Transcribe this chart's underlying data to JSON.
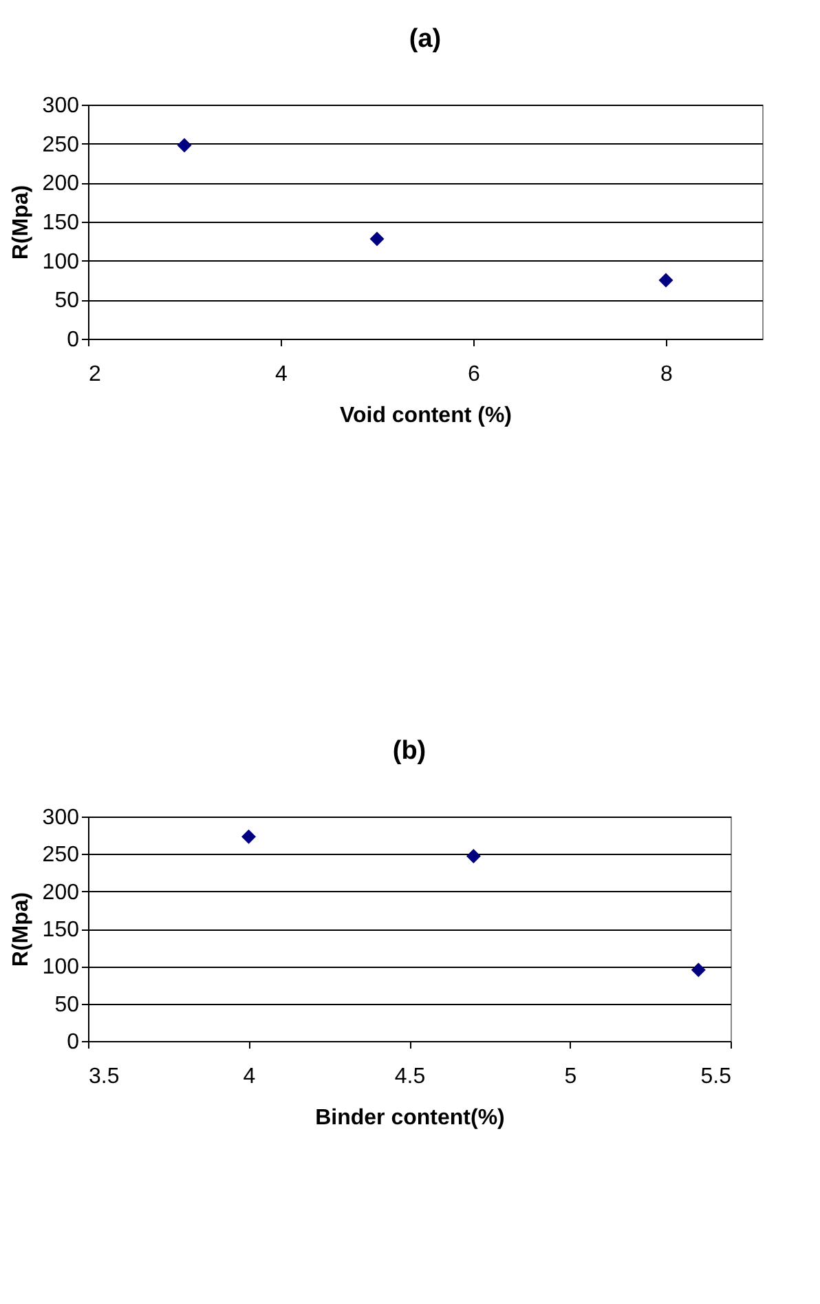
{
  "chart_data": [
    {
      "type": "scatter",
      "title": "(a)",
      "xlabel": "Void content (%)",
      "ylabel": "R(Mpa)",
      "marker": "diamond",
      "grid": "y",
      "xlim": [
        2,
        9
      ],
      "xticks": [
        2,
        4,
        6,
        8
      ],
      "ylim": [
        0,
        300
      ],
      "yticks": [
        0,
        50,
        100,
        150,
        200,
        250,
        300
      ],
      "series": [
        {
          "color": "#000080",
          "x": [
            3,
            5,
            8
          ],
          "values": [
            248,
            128,
            75
          ]
        }
      ]
    },
    {
      "type": "scatter",
      "title": "(b)",
      "xlabel": "Binder content(%)",
      "ylabel": "R(Mpa)",
      "marker": "diamond",
      "grid": "y",
      "xlim": [
        3.5,
        5.5
      ],
      "xticks": [
        3.5,
        4,
        4.5,
        5,
        5.5
      ],
      "ylim": [
        0,
        300
      ],
      "yticks": [
        0,
        50,
        100,
        150,
        200,
        250,
        300
      ],
      "series": [
        {
          "color": "#000080",
          "x": [
            4,
            4.7,
            5.4
          ],
          "values": [
            273,
            247,
            95
          ]
        }
      ]
    }
  ]
}
